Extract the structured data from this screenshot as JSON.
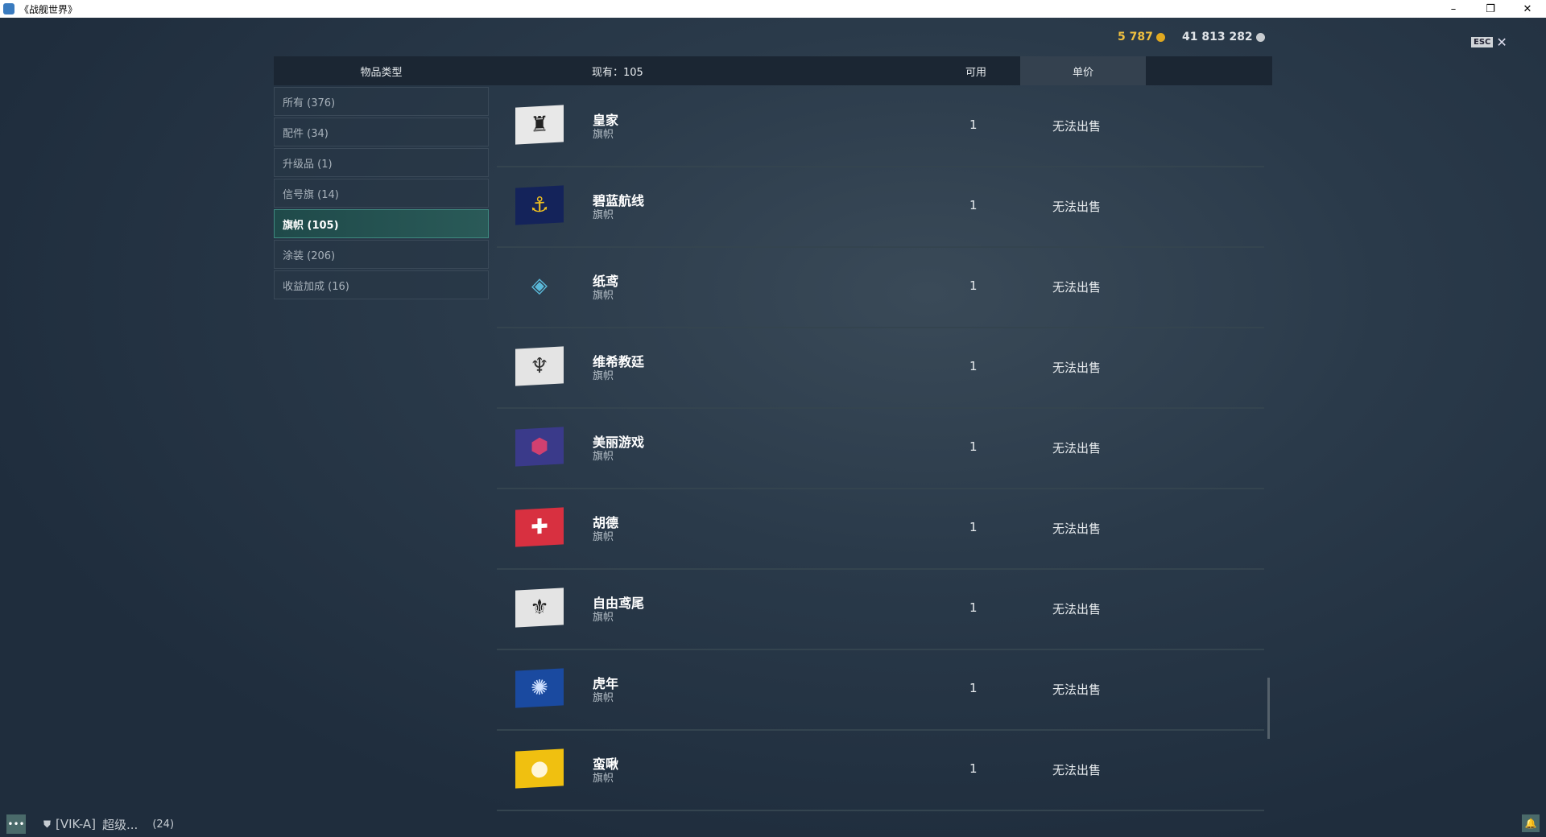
{
  "window": {
    "title": "《战舰世界》",
    "min": "–",
    "restore": "❐",
    "close": "✕"
  },
  "currency": {
    "gold": "5 787",
    "gold_color": "#f0c040",
    "credits": "41 813 282",
    "credits_color": "#e0e4e8"
  },
  "esc": {
    "key": "ESC",
    "close": "✕"
  },
  "header": {
    "type": "物品类型",
    "owned": "现有：105",
    "available": "可用",
    "price": "单价"
  },
  "sidebar": {
    "items": [
      {
        "label": "所有 (376)"
      },
      {
        "label": "配件 (34)"
      },
      {
        "label": "升级品 (1)"
      },
      {
        "label": "信号旗 (14)"
      },
      {
        "label": "旗帜 (105)",
        "active": true
      },
      {
        "label": "涂装 (206)"
      },
      {
        "label": "收益加成 (16)"
      }
    ]
  },
  "items": [
    {
      "name": "皇家",
      "type": "旗帜",
      "available": "1",
      "price": "无法出售",
      "icon": "royal-crest-flag",
      "color": "#e8e8e8",
      "glyph": "♜",
      "glyph_color": "#222"
    },
    {
      "name": "碧蓝航线",
      "type": "旗帜",
      "available": "1",
      "price": "无法出售",
      "icon": "anchor-flag",
      "color": "#14235a",
      "glyph": "⚓",
      "glyph_color": "#f0c020"
    },
    {
      "name": "纸鸢",
      "type": "旗帜",
      "available": "1",
      "price": "无法出售",
      "icon": "kite-flag",
      "color": "transparent",
      "glyph": "◈",
      "glyph_color": "#5ab8d8"
    },
    {
      "name": "维希教廷",
      "type": "旗帜",
      "available": "1",
      "price": "无法出售",
      "icon": "vichya-flag",
      "color": "#e4e4e4",
      "glyph": "♆",
      "glyph_color": "#333"
    },
    {
      "name": "美丽游戏",
      "type": "旗帜",
      "available": "1",
      "price": "无法出售",
      "icon": "hexagon-flag",
      "color": "#3a3a8a",
      "glyph": "⬢",
      "glyph_color": "#d04070"
    },
    {
      "name": "胡德",
      "type": "旗帜",
      "available": "1",
      "price": "无法出售",
      "icon": "hood-flag",
      "color": "#d83040",
      "glyph": "✚",
      "glyph_color": "#fff"
    },
    {
      "name": "自由鸢尾",
      "type": "旗帜",
      "available": "1",
      "price": "无法出售",
      "icon": "fleur-de-lis-flag",
      "color": "#e4e4e4",
      "glyph": "⚜",
      "glyph_color": "#222"
    },
    {
      "name": "虎年",
      "type": "旗帜",
      "available": "1",
      "price": "无法出售",
      "icon": "tiger-flag",
      "color": "#1a4aa0",
      "glyph": "✺",
      "glyph_color": "#cfe0ff"
    },
    {
      "name": "蛮啾",
      "type": "旗帜",
      "available": "1",
      "price": "无法出售",
      "icon": "bird-flag",
      "color": "#f0c010",
      "glyph": "●",
      "glyph_color": "#fff6d8"
    }
  ],
  "bottom": {
    "clan": "[VIK-A]",
    "player": "超级...",
    "count": "(24)"
  }
}
